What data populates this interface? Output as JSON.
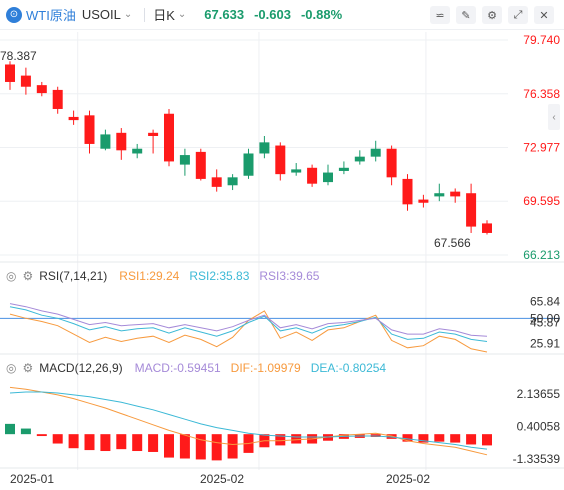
{
  "header": {
    "logo_glyph": "⊙",
    "name": "WTI原油",
    "code": "USOIL",
    "chevron": "⌄",
    "period": "日K",
    "price": "67.633",
    "change": "-0.603",
    "change_pct": "-0.88%",
    "tools": [
      {
        "name": "indicator-tool-icon",
        "glyph": "⋍"
      },
      {
        "name": "draw-tool-icon",
        "glyph": "✎"
      },
      {
        "name": "settings-icon",
        "glyph": "⚙"
      },
      {
        "name": "fullscreen-icon",
        "glyph": "⤢"
      },
      {
        "name": "close-icon",
        "glyph": "✕"
      }
    ]
  },
  "colors": {
    "up": "#ff1a1a",
    "down": "#1a9b6c",
    "grid": "#eef0f3",
    "rsi1": "#f79a3e",
    "rsi2": "#3cb9d6",
    "rsi3": "#a58ad8",
    "macd_dif": "#f79a3e",
    "macd_dea": "#3cb9d6",
    "ref_line": "#4a90e2"
  },
  "rsi": {
    "name": "RSI(7,14,21)",
    "rsi1": "RSI1:29.24",
    "rsi2": "RSI2:35.83",
    "rsi3": "RSI3:39.65"
  },
  "macd": {
    "name": "MACD(12,26,9)",
    "macd": "MACD:-0.59451",
    "dif": "DIF:-1.09979",
    "dea": "DEA:-0.80254"
  },
  "side_button": "‹",
  "chart_data": [
    {
      "type": "candlestick",
      "title": "WTI原油 USOIL 日K",
      "y_ticks": [
        "79.740",
        "76.358",
        "72.977",
        "69.595",
        "66.213"
      ],
      "ylim": [
        66.213,
        79.74
      ],
      "high_marker": "78.387",
      "low_marker": "67.566",
      "x_tick_labels": [
        "2025-01",
        "2025-02",
        "2025-02"
      ],
      "candles": [
        {
          "o": 78.2,
          "c": 77.1,
          "h": 78.4,
          "l": 76.6
        },
        {
          "o": 77.5,
          "c": 76.8,
          "h": 78.0,
          "l": 76.3
        },
        {
          "o": 76.9,
          "c": 76.4,
          "h": 77.1,
          "l": 76.2
        },
        {
          "o": 76.6,
          "c": 75.4,
          "h": 76.8,
          "l": 75.1
        },
        {
          "o": 74.9,
          "c": 74.7,
          "h": 75.3,
          "l": 74.4
        },
        {
          "o": 75.0,
          "c": 73.2,
          "h": 75.3,
          "l": 72.6
        },
        {
          "o": 72.9,
          "c": 73.8,
          "h": 74.1,
          "l": 72.8
        },
        {
          "o": 73.9,
          "c": 72.8,
          "h": 74.2,
          "l": 72.2
        },
        {
          "o": 72.6,
          "c": 72.9,
          "h": 73.2,
          "l": 72.3
        },
        {
          "o": 73.9,
          "c": 73.7,
          "h": 74.1,
          "l": 72.6
        },
        {
          "o": 75.1,
          "c": 72.1,
          "h": 75.4,
          "l": 71.8
        },
        {
          "o": 71.9,
          "c": 72.5,
          "h": 72.9,
          "l": 71.2
        },
        {
          "o": 72.7,
          "c": 71.0,
          "h": 72.9,
          "l": 70.9
        },
        {
          "o": 71.1,
          "c": 70.5,
          "h": 71.6,
          "l": 70.2
        },
        {
          "o": 70.6,
          "c": 71.1,
          "h": 71.3,
          "l": 70.3
        },
        {
          "o": 71.2,
          "c": 72.6,
          "h": 72.9,
          "l": 71.0
        },
        {
          "o": 72.6,
          "c": 73.3,
          "h": 73.7,
          "l": 72.3
        },
        {
          "o": 73.1,
          "c": 71.3,
          "h": 73.3,
          "l": 70.9
        },
        {
          "o": 71.4,
          "c": 71.6,
          "h": 72.0,
          "l": 71.2
        },
        {
          "o": 71.7,
          "c": 70.7,
          "h": 71.9,
          "l": 70.5
        },
        {
          "o": 70.8,
          "c": 71.4,
          "h": 71.9,
          "l": 70.6
        },
        {
          "o": 71.5,
          "c": 71.7,
          "h": 72.1,
          "l": 71.3
        },
        {
          "o": 72.1,
          "c": 72.4,
          "h": 72.8,
          "l": 71.9
        },
        {
          "o": 72.4,
          "c": 72.9,
          "h": 73.4,
          "l": 72.1
        },
        {
          "o": 72.9,
          "c": 71.1,
          "h": 73.1,
          "l": 70.6
        },
        {
          "o": 71.0,
          "c": 69.4,
          "h": 71.3,
          "l": 69.0
        },
        {
          "o": 69.7,
          "c": 69.5,
          "h": 70.0,
          "l": 69.2
        },
        {
          "o": 69.9,
          "c": 70.1,
          "h": 70.7,
          "l": 69.6
        },
        {
          "o": 70.2,
          "c": 69.9,
          "h": 70.4,
          "l": 69.5
        },
        {
          "o": 70.1,
          "c": 68.0,
          "h": 70.7,
          "l": 67.6
        },
        {
          "o": 68.2,
          "c": 67.6,
          "h": 68.4,
          "l": 67.5
        }
      ]
    },
    {
      "type": "line",
      "title": "RSI(7,14,21)",
      "y_ticks": [
        "65.84",
        "50.00",
        "45.87",
        "25.91"
      ],
      "ylim": [
        18,
        75
      ],
      "reference_line": 50,
      "series": [
        {
          "name": "RSI1",
          "values": [
            54,
            50,
            47,
            43,
            35,
            27,
            32,
            28,
            31,
            33,
            27,
            34,
            30,
            23,
            32,
            48,
            57,
            31,
            37,
            29,
            39,
            41,
            47,
            53,
            29,
            22,
            24,
            33,
            30,
            21,
            18
          ]
        },
        {
          "name": "RSI2",
          "values": [
            61,
            58,
            53,
            50,
            45,
            39,
            42,
            38,
            40,
            41,
            36,
            41,
            37,
            33,
            38,
            46,
            52,
            38,
            41,
            36,
            42,
            44,
            47,
            51,
            35,
            30,
            31,
            37,
            35,
            30,
            28
          ]
        },
        {
          "name": "RSI3",
          "values": [
            64,
            61,
            57,
            54,
            49,
            44,
            46,
            43,
            44,
            45,
            41,
            44,
            41,
            38,
            42,
            48,
            53,
            41,
            44,
            40,
            45,
            46,
            48,
            50,
            39,
            35,
            35,
            40,
            38,
            34,
            33
          ]
        }
      ]
    },
    {
      "type": "bar+line",
      "title": "MACD(12,26,9)",
      "y_ticks": [
        "2.13655",
        "0.40058",
        "-1.33539"
      ],
      "ylim": [
        -1.7,
        3.0
      ],
      "series": [
        {
          "name": "MACD",
          "values": [
            0.55,
            0.3,
            -0.1,
            -0.5,
            -0.75,
            -0.85,
            -0.9,
            -0.8,
            -0.9,
            -0.95,
            -1.25,
            -1.3,
            -1.35,
            -1.4,
            -1.3,
            -1.0,
            -0.7,
            -0.6,
            -0.5,
            -0.5,
            -0.35,
            -0.25,
            -0.2,
            -0.15,
            -0.25,
            -0.4,
            -0.45,
            -0.4,
            -0.45,
            -0.55,
            -0.6
          ]
        },
        {
          "name": "DIF",
          "values": [
            2.5,
            2.4,
            2.25,
            2.1,
            1.9,
            1.65,
            1.4,
            1.1,
            0.8,
            0.5,
            0.2,
            -0.05,
            -0.3,
            -0.45,
            -0.55,
            -0.5,
            -0.35,
            -0.35,
            -0.3,
            -0.25,
            -0.15,
            -0.05,
            0.0,
            0.05,
            -0.1,
            -0.35,
            -0.5,
            -0.6,
            -0.7,
            -0.9,
            -1.1
          ]
        },
        {
          "name": "DEA",
          "values": [
            2.2,
            2.25,
            2.25,
            2.2,
            2.1,
            2.0,
            1.85,
            1.7,
            1.5,
            1.3,
            1.05,
            0.8,
            0.55,
            0.35,
            0.2,
            0.05,
            -0.05,
            -0.1,
            -0.15,
            -0.15,
            -0.15,
            -0.12,
            -0.1,
            -0.1,
            -0.15,
            -0.25,
            -0.35,
            -0.45,
            -0.55,
            -0.7,
            -0.8
          ]
        }
      ]
    }
  ]
}
